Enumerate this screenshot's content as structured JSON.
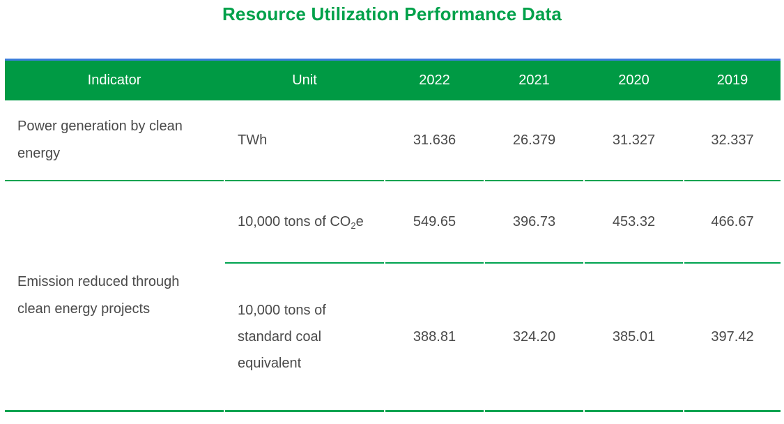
{
  "title": "Resource Utilization Performance Data",
  "colors": {
    "title_green": "#00A14A",
    "header_green": "#009A44",
    "line_green": "#00A350",
    "header_top_blue": "#3D7EDB",
    "header_text": "#FFFFFF",
    "body_text": "#4A4A4A"
  },
  "table": {
    "headers": [
      "Indicator",
      "Unit",
      "2022",
      "2021",
      "2020",
      "2019"
    ],
    "rows": [
      {
        "indicator": "Power generation by clean energy",
        "unit": "TWh",
        "values": [
          "31.636",
          "26.379",
          "31.327",
          "32.337"
        ]
      },
      {
        "indicator": "Emission reduced through clean energy projects",
        "sub_rows": [
          {
            "unit_prefix": "10,000 tons of CO",
            "unit_sub": "2",
            "unit_suffix": "e",
            "values": [
              "549.65",
              "396.73",
              "453.32",
              "466.67"
            ]
          },
          {
            "unit": "10,000 tons of standard coal equivalent",
            "values": [
              "388.81",
              "324.20",
              "385.01",
              "397.42"
            ]
          }
        ]
      }
    ]
  }
}
